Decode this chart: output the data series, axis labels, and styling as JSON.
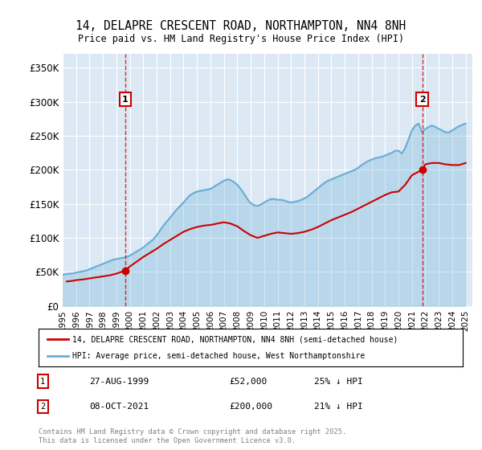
{
  "title": "14, DELAPRE CRESCENT ROAD, NORTHAMPTON, NN4 8NH",
  "subtitle": "Price paid vs. HM Land Registry's House Price Index (HPI)",
  "bg_color": "#dce9f5",
  "plot_bg_color": "#dce9f5",
  "hpi_color": "#6aaed6",
  "price_color": "#cc0000",
  "ylim": [
    0,
    370000
  ],
  "yticks": [
    0,
    50000,
    100000,
    150000,
    200000,
    250000,
    300000,
    350000
  ],
  "ytick_labels": [
    "£0",
    "£50K",
    "£100K",
    "£150K",
    "£200K",
    "£250K",
    "£300K",
    "£350K"
  ],
  "xlim_start": 1995.0,
  "xlim_end": 2025.5,
  "sale1_x": 1999.65,
  "sale1_y": 52000,
  "sale2_x": 2021.77,
  "sale2_y": 200000,
  "legend_line1": "14, DELAPRE CRESCENT ROAD, NORTHAMPTON, NN4 8NH (semi-detached house)",
  "legend_line2": "HPI: Average price, semi-detached house, West Northamptonshire",
  "annotation1_date": "27-AUG-1999",
  "annotation1_price": "£52,000",
  "annotation1_hpi": "25% ↓ HPI",
  "annotation2_date": "08-OCT-2021",
  "annotation2_price": "£200,000",
  "annotation2_hpi": "21% ↓ HPI",
  "footer": "Contains HM Land Registry data © Crown copyright and database right 2025.\nThis data is licensed under the Open Government Licence v3.0.",
  "hpi_data_x": [
    1995.0,
    1995.25,
    1995.5,
    1995.75,
    1996.0,
    1996.25,
    1996.5,
    1996.75,
    1997.0,
    1997.25,
    1997.5,
    1997.75,
    1998.0,
    1998.25,
    1998.5,
    1998.75,
    1999.0,
    1999.25,
    1999.5,
    1999.75,
    2000.0,
    2000.25,
    2000.5,
    2000.75,
    2001.0,
    2001.25,
    2001.5,
    2001.75,
    2002.0,
    2002.25,
    2002.5,
    2002.75,
    2003.0,
    2003.25,
    2003.5,
    2003.75,
    2004.0,
    2004.25,
    2004.5,
    2004.75,
    2005.0,
    2005.25,
    2005.5,
    2005.75,
    2006.0,
    2006.25,
    2006.5,
    2006.75,
    2007.0,
    2007.25,
    2007.5,
    2007.75,
    2008.0,
    2008.25,
    2008.5,
    2008.75,
    2009.0,
    2009.25,
    2009.5,
    2009.75,
    2010.0,
    2010.25,
    2010.5,
    2010.75,
    2011.0,
    2011.25,
    2011.5,
    2011.75,
    2012.0,
    2012.25,
    2012.5,
    2012.75,
    2013.0,
    2013.25,
    2013.5,
    2013.75,
    2014.0,
    2014.25,
    2014.5,
    2014.75,
    2015.0,
    2015.25,
    2015.5,
    2015.75,
    2016.0,
    2016.25,
    2016.5,
    2016.75,
    2017.0,
    2017.25,
    2017.5,
    2017.75,
    2018.0,
    2018.25,
    2018.5,
    2018.75,
    2019.0,
    2019.25,
    2019.5,
    2019.75,
    2020.0,
    2020.25,
    2020.5,
    2020.75,
    2021.0,
    2021.25,
    2021.5,
    2021.75,
    2022.0,
    2022.25,
    2022.5,
    2022.75,
    2023.0,
    2023.25,
    2023.5,
    2023.75,
    2024.0,
    2024.25,
    2024.5,
    2024.75,
    2025.0
  ],
  "hpi_data_y": [
    46000,
    47000,
    47500,
    48000,
    49000,
    50000,
    51000,
    52000,
    54000,
    56000,
    58000,
    60000,
    62000,
    64000,
    66000,
    68000,
    69000,
    70000,
    71000,
    72000,
    74000,
    77000,
    80000,
    83000,
    86000,
    90000,
    94000,
    98000,
    104000,
    111000,
    118000,
    124000,
    130000,
    136000,
    142000,
    147000,
    152000,
    158000,
    163000,
    166000,
    168000,
    169000,
    170000,
    171000,
    172000,
    175000,
    178000,
    181000,
    184000,
    186000,
    185000,
    182000,
    178000,
    172000,
    165000,
    157000,
    151000,
    148000,
    147000,
    149000,
    152000,
    155000,
    157000,
    157000,
    156000,
    156000,
    155000,
    153000,
    152000,
    153000,
    154000,
    156000,
    158000,
    161000,
    165000,
    169000,
    173000,
    177000,
    181000,
    184000,
    186000,
    188000,
    190000,
    192000,
    194000,
    196000,
    198000,
    200000,
    203000,
    207000,
    210000,
    213000,
    215000,
    217000,
    218000,
    219000,
    221000,
    223000,
    225000,
    228000,
    228000,
    224000,
    232000,
    245000,
    258000,
    265000,
    268000,
    255000,
    260000,
    263000,
    265000,
    263000,
    260000,
    258000,
    255000,
    255000,
    258000,
    261000,
    264000,
    266000,
    268000
  ],
  "price_data_x": [
    1995.3,
    1995.75,
    1996.0,
    1996.5,
    1997.0,
    1997.5,
    1998.0,
    1998.5,
    1999.0,
    1999.65,
    2000.0,
    2000.5,
    2001.0,
    2001.5,
    2002.0,
    2002.5,
    2003.0,
    2003.5,
    2004.0,
    2004.5,
    2005.0,
    2005.5,
    2006.0,
    2006.5,
    2007.0,
    2007.5,
    2008.0,
    2008.5,
    2009.0,
    2009.5,
    2010.0,
    2010.5,
    2011.0,
    2011.5,
    2012.0,
    2012.5,
    2013.0,
    2013.5,
    2014.0,
    2014.5,
    2015.0,
    2015.5,
    2016.0,
    2016.5,
    2017.0,
    2017.5,
    2018.0,
    2018.5,
    2019.0,
    2019.5,
    2020.0,
    2020.5,
    2021.0,
    2021.77,
    2022.0,
    2022.5,
    2023.0,
    2023.5,
    2024.0,
    2024.5,
    2025.0
  ],
  "price_data_y": [
    36000,
    37000,
    38000,
    39000,
    40500,
    42000,
    43500,
    45000,
    47500,
    52000,
    58000,
    65000,
    72000,
    78000,
    84000,
    91000,
    97000,
    103000,
    109000,
    113000,
    116000,
    118000,
    119000,
    121000,
    123000,
    121000,
    117000,
    110000,
    104000,
    100000,
    103000,
    106000,
    108000,
    107000,
    106000,
    107000,
    109000,
    112000,
    116000,
    121000,
    126000,
    130000,
    134000,
    138000,
    143000,
    148000,
    153000,
    158000,
    163000,
    167000,
    168000,
    178000,
    192000,
    200000,
    208000,
    210000,
    210000,
    208000,
    207000,
    207000,
    210000
  ]
}
